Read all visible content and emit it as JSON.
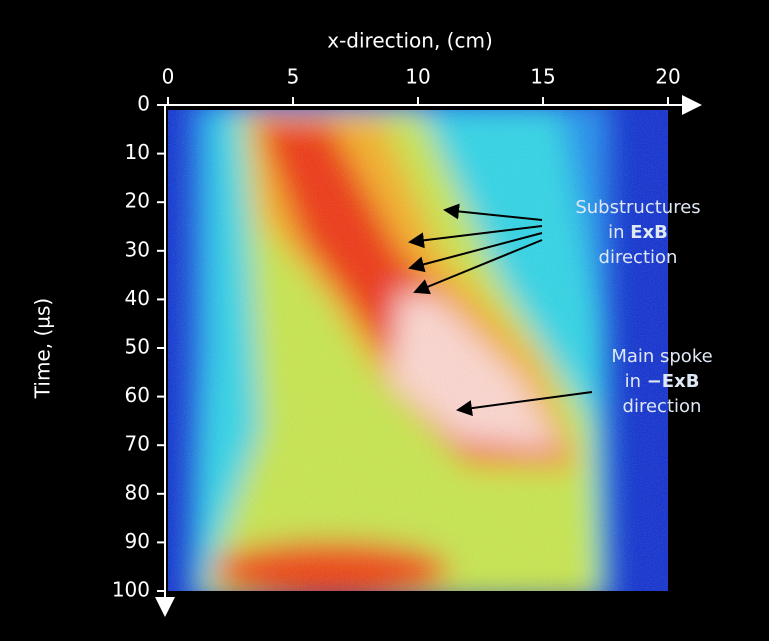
{
  "chart_data": {
    "type": "heatmap",
    "x_label": "x-direction, (cm)",
    "y_label": "Time, (µs)",
    "xlim": [
      0,
      20
    ],
    "ylim": [
      0,
      100
    ],
    "y_inverted": true,
    "xticks": [
      0,
      5,
      10,
      15,
      20
    ],
    "yticks": [
      0,
      10,
      20,
      30,
      40,
      50,
      60,
      70,
      80,
      90,
      100
    ],
    "annotations": [
      {
        "lines": [
          [
            "Substructures"
          ],
          [
            "in ",
            "ExB"
          ],
          [
            "direction"
          ]
        ],
        "bold_segment": 1
      },
      {
        "lines": [
          [
            "Main spoke"
          ],
          [
            "in ",
            "−ExB"
          ],
          [
            "direction"
          ]
        ],
        "bold_segment": 1
      }
    ]
  }
}
